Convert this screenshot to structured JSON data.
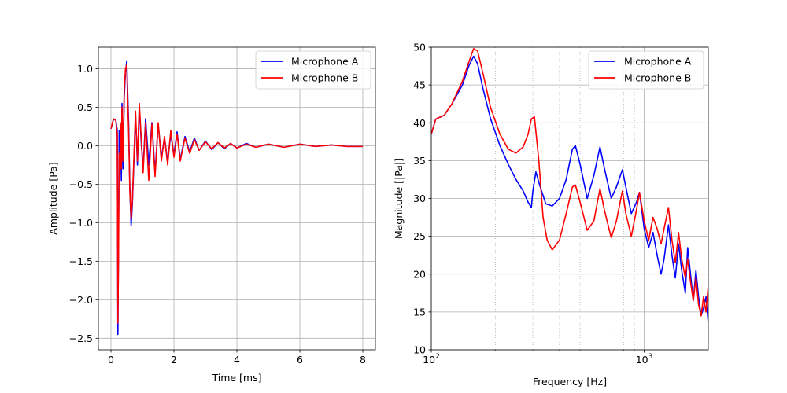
{
  "chart_data": [
    {
      "type": "line",
      "xlabel": "Time [ms]",
      "ylabel": "Amplitude [Pa]",
      "xlim": [
        -0.4,
        8.4
      ],
      "ylim": [
        -2.65,
        1.28
      ],
      "xticks": [
        0,
        2,
        4,
        6,
        8
      ],
      "xtick_labels": [
        "0",
        "2",
        "4",
        "6",
        "8"
      ],
      "yticks": [
        -2.5,
        -2.0,
        -1.5,
        -1.0,
        -0.5,
        0.0,
        0.5,
        1.0
      ],
      "ytick_labels": [
        "−2.5",
        "−2.0",
        "−1.5",
        "−1.0",
        "−0.5",
        "0.0",
        "0.5",
        "1.0"
      ],
      "grid": true,
      "legend": "top-right",
      "series": [
        {
          "name": "Microphone A",
          "color": "#0000ff",
          "x": [
            0,
            0.08,
            0.15,
            0.2,
            0.22,
            0.24,
            0.26,
            0.28,
            0.3,
            0.33,
            0.35,
            0.38,
            0.42,
            0.46,
            0.5,
            0.53,
            0.56,
            0.6,
            0.64,
            0.68,
            0.72,
            0.78,
            0.84,
            0.9,
            0.96,
            1.02,
            1.1,
            1.2,
            1.3,
            1.4,
            1.5,
            1.6,
            1.7,
            1.8,
            1.9,
            2.0,
            2.1,
            2.2,
            2.35,
            2.5,
            2.65,
            2.8,
            3.0,
            3.2,
            3.4,
            3.6,
            3.8,
            4.0,
            4.3,
            4.6,
            5.0,
            5.5,
            6.0,
            6.5,
            7.0,
            7.5,
            8.0
          ],
          "y": [
            0.22,
            0.34,
            0.34,
            0.2,
            -2.45,
            -1.2,
            0.2,
            -0.4,
            0.25,
            -0.45,
            0.55,
            -0.3,
            0.62,
            0.95,
            1.1,
            0.7,
            0.3,
            -0.55,
            -1.04,
            -0.75,
            -0.3,
            0.4,
            -0.25,
            0.5,
            0.05,
            -0.3,
            0.35,
            -0.25,
            0.3,
            -0.35,
            0.28,
            -0.15,
            0.1,
            -0.2,
            0.15,
            -0.12,
            0.18,
            -0.18,
            0.12,
            -0.08,
            0.1,
            -0.06,
            0.06,
            -0.05,
            0.04,
            -0.04,
            0.03,
            -0.03,
            0.03,
            -0.02,
            0.02,
            -0.02,
            0.02,
            -0.01,
            0.01,
            -0.01,
            -0.01
          ]
        },
        {
          "name": "Microphone B",
          "color": "#ff0000",
          "x": [
            0,
            0.08,
            0.15,
            0.2,
            0.22,
            0.24,
            0.26,
            0.28,
            0.3,
            0.33,
            0.35,
            0.38,
            0.42,
            0.46,
            0.5,
            0.53,
            0.56,
            0.6,
            0.64,
            0.68,
            0.72,
            0.78,
            0.84,
            0.9,
            0.96,
            1.02,
            1.1,
            1.2,
            1.3,
            1.4,
            1.5,
            1.6,
            1.7,
            1.8,
            1.9,
            2.0,
            2.1,
            2.2,
            2.35,
            2.5,
            2.65,
            2.8,
            3.0,
            3.2,
            3.4,
            3.6,
            3.8,
            4.0,
            4.3,
            4.6,
            5.0,
            5.5,
            6.0,
            6.5,
            7.0,
            7.5,
            8.0
          ],
          "y": [
            0.22,
            0.35,
            0.33,
            0.15,
            -2.3,
            -1.45,
            -0.1,
            -0.5,
            0.3,
            -0.3,
            0.5,
            -0.2,
            0.7,
            1.0,
            1.05,
            0.6,
            0.2,
            -0.6,
            -0.95,
            -0.7,
            -0.25,
            0.45,
            -0.2,
            0.55,
            0.1,
            -0.35,
            0.3,
            -0.45,
            0.28,
            -0.4,
            0.3,
            -0.2,
            0.12,
            -0.25,
            0.2,
            -0.15,
            0.15,
            -0.2,
            0.1,
            -0.1,
            0.08,
            -0.06,
            0.05,
            -0.04,
            0.04,
            -0.03,
            0.03,
            -0.03,
            0.02,
            -0.02,
            0.02,
            -0.02,
            0.02,
            -0.01,
            0.01,
            -0.01,
            -0.01
          ]
        }
      ]
    },
    {
      "type": "line",
      "xscale": "log",
      "xlabel": "Frequency [Hz]",
      "ylabel": "Magnitude [|Pa|]",
      "xlim": [
        100,
        2000
      ],
      "ylim": [
        10,
        50
      ],
      "xticks": [
        100,
        1000
      ],
      "xtick_labels": [
        "10",
        "10"
      ],
      "xtick_exponents": [
        "2",
        "3"
      ],
      "xminor_ticks": [
        200,
        300,
        400,
        500,
        600,
        700,
        800,
        900
      ],
      "yticks": [
        10,
        15,
        20,
        25,
        30,
        35,
        40,
        45,
        50
      ],
      "ytick_labels": [
        "10",
        "15",
        "20",
        "25",
        "30",
        "35",
        "40",
        "45",
        "50"
      ],
      "grid": true,
      "legend": "top-right",
      "series": [
        {
          "name": "Microphone A",
          "color": "#0000ff",
          "x": [
            100,
            105,
            115,
            125,
            140,
            150,
            158,
            165,
            175,
            190,
            210,
            230,
            250,
            270,
            285,
            295,
            300,
            310,
            325,
            345,
            370,
            400,
            430,
            460,
            475,
            500,
            540,
            580,
            620,
            650,
            700,
            740,
            790,
            820,
            870,
            920,
            950,
            1000,
            1050,
            1100,
            1150,
            1200,
            1240,
            1300,
            1350,
            1400,
            1450,
            1500,
            1560,
            1600,
            1650,
            1700,
            1750,
            1800,
            1850,
            1900,
            1950,
            2000
          ],
          "y": [
            38.5,
            40.5,
            41,
            42.5,
            45,
            47.5,
            48.8,
            47.8,
            44.5,
            40.5,
            37,
            34.5,
            32.5,
            31,
            29.5,
            28.8,
            31,
            33.5,
            31.5,
            29.3,
            29,
            30,
            32.5,
            36.5,
            37,
            34.5,
            30,
            33,
            36.8,
            34,
            30,
            31.5,
            33.8,
            31.5,
            28,
            29.5,
            30.8,
            26,
            23.5,
            25.5,
            22.5,
            20,
            22,
            26.5,
            22.5,
            19.5,
            24,
            20.5,
            17.5,
            23.5,
            20,
            16.5,
            20.5,
            17,
            14.5,
            15.5,
            17,
            13.5
          ]
        },
        {
          "name": "Microphone B",
          "color": "#ff0000",
          "x": [
            100,
            105,
            115,
            125,
            140,
            150,
            158,
            165,
            175,
            190,
            210,
            230,
            250,
            270,
            285,
            295,
            305,
            320,
            335,
            350,
            370,
            400,
            430,
            460,
            475,
            500,
            540,
            580,
            620,
            650,
            700,
            740,
            790,
            820,
            870,
            920,
            950,
            1000,
            1050,
            1100,
            1150,
            1200,
            1250,
            1300,
            1350,
            1400,
            1450,
            1500,
            1560,
            1600,
            1650,
            1700,
            1750,
            1800,
            1850,
            1900,
            1950,
            2000
          ],
          "y": [
            38.5,
            40.5,
            41,
            42.5,
            45.5,
            48,
            49.8,
            49.5,
            46.5,
            42,
            38.5,
            36.5,
            36,
            36.8,
            38.5,
            40.5,
            40.8,
            35,
            27.5,
            24.5,
            23.2,
            24.5,
            28,
            31.5,
            31.8,
            29.5,
            25.8,
            27,
            31.3,
            28.5,
            24.8,
            27,
            31,
            28,
            25,
            28.5,
            30.8,
            27,
            24.5,
            27.5,
            26,
            24,
            26.5,
            28.8,
            24.5,
            21.5,
            25.5,
            22,
            19.5,
            22,
            19,
            16.5,
            19.5,
            16,
            14.5,
            17,
            15,
            18.5
          ]
        }
      ]
    }
  ]
}
